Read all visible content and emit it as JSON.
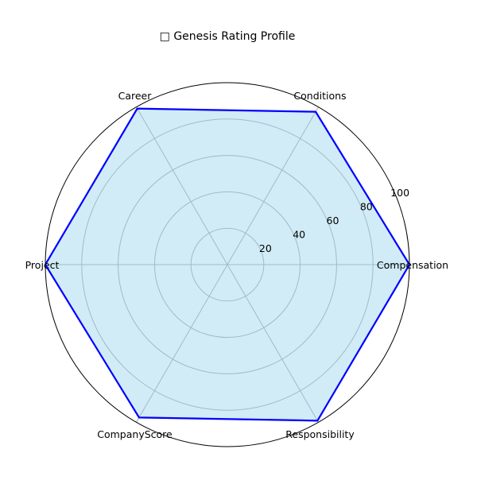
{
  "chart_data": {
    "type": "radar",
    "title": "□ Genesis Rating Profile",
    "categories": [
      "Compensation",
      "Conditions",
      "Career",
      "Project",
      "CompanyScore",
      "Responsibility"
    ],
    "series": [
      {
        "values": [
          100,
          97,
          99,
          100,
          97,
          99
        ]
      }
    ],
    "rlim": [
      0,
      100
    ],
    "rticks": [
      20,
      40,
      60,
      80,
      100
    ],
    "grid": true,
    "colors": {
      "line": "#0000ff",
      "fill": "#87ceeb",
      "grid": "#b0b0b0",
      "frame": "#000000"
    }
  }
}
